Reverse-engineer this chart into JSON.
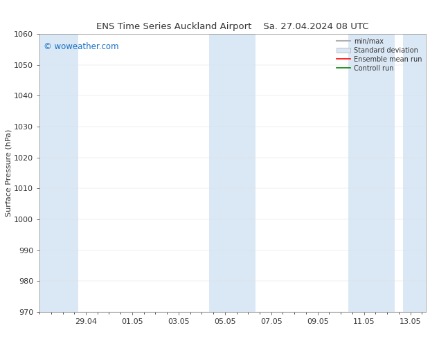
{
  "title_left": "ENS Time Series Auckland Airport",
  "title_right": "Sa. 27.04.2024 08 UTC",
  "ylabel": "Surface Pressure (hPa)",
  "ylim": [
    970,
    1060
  ],
  "yticks": [
    970,
    980,
    990,
    1000,
    1010,
    1020,
    1030,
    1040,
    1050,
    1060
  ],
  "xlim": [
    0.0,
    16.67
  ],
  "xtick_labels": [
    "29.04",
    "01.05",
    "03.05",
    "05.05",
    "07.05",
    "09.05",
    "11.05",
    "13.05"
  ],
  "xtick_positions": [
    2,
    4,
    6,
    8,
    10,
    12,
    14,
    16
  ],
  "bg_color": "#ffffff",
  "shaded_band_color": "#dae8f5",
  "watermark": "© woweather.com",
  "watermark_color": "#1a6fc4",
  "legend_items": [
    {
      "label": "min/max",
      "color": "#b0b0b0",
      "lw": 1.5
    },
    {
      "label": "Standard deviation",
      "color": "#dae8f5",
      "lw": 8
    },
    {
      "label": "Ensemble mean run",
      "color": "#ff0000",
      "lw": 1.2
    },
    {
      "label": "Controll run",
      "color": "#008000",
      "lw": 1.2
    }
  ],
  "shaded_ranges": [
    [
      0.0,
      1.67
    ],
    [
      7.33,
      9.33
    ],
    [
      13.33,
      15.33
    ],
    [
      15.67,
      16.67
    ]
  ],
  "font_color": "#333333",
  "title_fontsize": 9.5,
  "axis_fontsize": 8,
  "ylabel_fontsize": 8
}
